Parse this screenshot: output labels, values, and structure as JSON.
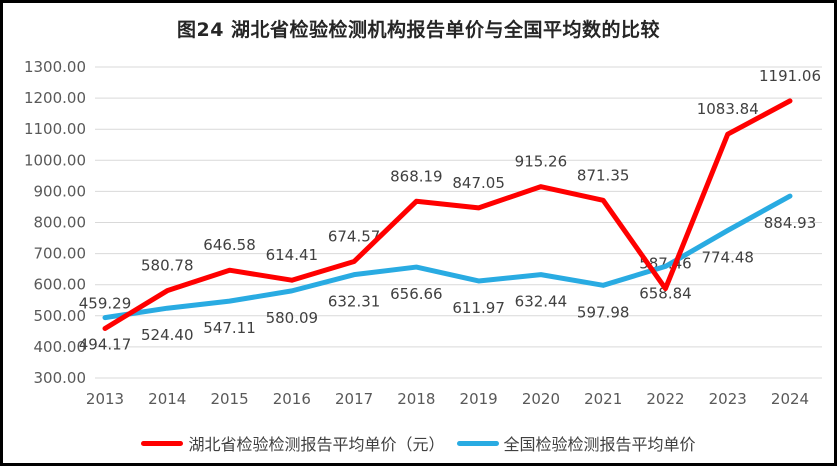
{
  "chart_data": {
    "type": "line",
    "title": "图24 湖北省检验检测机构报告单价与全国平均数的比较",
    "categories": [
      "2013",
      "2014",
      "2015",
      "2016",
      "2017",
      "2018",
      "2019",
      "2020",
      "2021",
      "2022",
      "2023",
      "2024"
    ],
    "series": [
      {
        "key": "hubei",
        "name": "湖北省检验检测报告平均单价（元）",
        "color": "#ff0000",
        "label_position": "above",
        "values": [
          459.29,
          580.78,
          646.58,
          614.41,
          674.57,
          868.19,
          847.05,
          915.26,
          871.35,
          587.46,
          1083.84,
          1191.06
        ]
      },
      {
        "key": "national",
        "name": "全国检验检测报告平均单价",
        "color": "#29abe2",
        "label_position": "below",
        "values": [
          494.17,
          524.4,
          547.11,
          580.09,
          632.31,
          656.66,
          611.97,
          632.44,
          597.98,
          658.84,
          774.48,
          884.93
        ]
      }
    ],
    "ylim": [
      300,
      1300
    ],
    "yticks": [
      "1300.00",
      "1200.00",
      "1100.00",
      "1000.00",
      "900.00",
      "800.00",
      "700.00",
      "600.00",
      "500.00",
      "400.00",
      "300.00"
    ],
    "grid": "horizontal",
    "legend_position": "bottom",
    "value_decimals": 2,
    "colors": {
      "gridline": "#d9d9d9",
      "tick_label": "#595959",
      "data_label": "#404040",
      "title": "#262626",
      "frame_border": "#000000",
      "background": "#ffffff"
    }
  }
}
